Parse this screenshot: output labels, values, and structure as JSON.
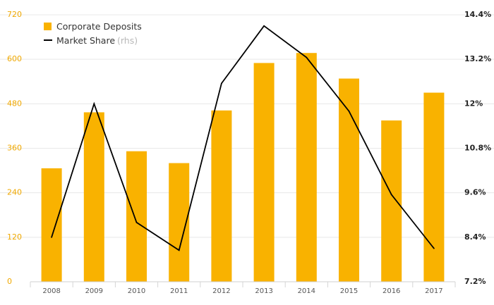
{
  "chart_data": {
    "type": "bar",
    "categories": [
      "2008",
      "2009",
      "2010",
      "2011",
      "2012",
      "2013",
      "2014",
      "2015",
      "2016",
      "2017"
    ],
    "series": [
      {
        "name": "Corporate Deposits",
        "type": "bar",
        "axis": "left",
        "values": [
          306,
          457,
          352,
          320,
          462,
          590,
          617,
          548,
          435,
          510
        ]
      },
      {
        "name": "Market Share",
        "suffix": "(rhs)",
        "type": "line",
        "axis": "right",
        "values": [
          8.4,
          12.0,
          8.8,
          8.05,
          12.55,
          14.1,
          13.25,
          11.8,
          9.55,
          8.1
        ]
      }
    ],
    "yleft": {
      "ticks": [
        "0",
        "120",
        "240",
        "360",
        "480",
        "600",
        "720"
      ],
      "lim": [
        0,
        720
      ]
    },
    "yright": {
      "ticks": [
        "7.2%",
        "8.4%",
        "9.6%",
        "10.8%",
        "12%",
        "13.2%",
        "14.4%"
      ],
      "lim": [
        7.2,
        14.4
      ]
    },
    "grid": true,
    "legend_position": "top-left",
    "colors": {
      "bar": "#f9b200",
      "line": "#000000",
      "grid": "#e8e8e8",
      "left_ticks": "#f0a800",
      "right_ticks": "#222222",
      "x_ticks": "#555555"
    }
  }
}
